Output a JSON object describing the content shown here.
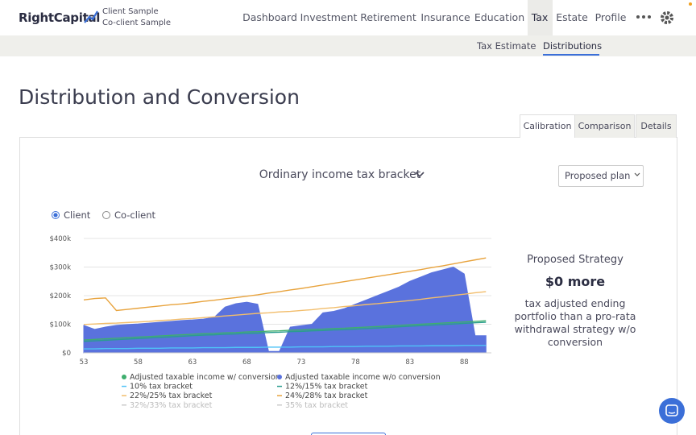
{
  "header": {
    "brand": "RightCapital",
    "client": "Client Sample",
    "coclient": "Co-client Sample",
    "nav": [
      "Dashboard",
      "Investment",
      "Retirement",
      "Insurance",
      "Education",
      "Tax",
      "Estate",
      "Profile"
    ]
  },
  "subnav": [
    "Tax Estimate",
    "Distributions"
  ],
  "page_title": "Distribution and Conversion",
  "tabs": [
    "Calibration",
    "Comparison",
    "Details"
  ],
  "chart_selector": "Ordinary income tax bracket",
  "plan_select": "Proposed plan",
  "radios": [
    "Client",
    "Co-client"
  ],
  "summary": {
    "title": "Proposed Strategy",
    "amount": "$0 more",
    "text": "tax adjusted ending portfolio than a pro-rata withdrawal strategy w/o conversion"
  },
  "chart_data": {
    "type": "line",
    "x": [
      53,
      54,
      55,
      56,
      57,
      58,
      59,
      60,
      61,
      62,
      63,
      64,
      65,
      66,
      67,
      68,
      69,
      70,
      71,
      72,
      73,
      74,
      75,
      76,
      77,
      78,
      79,
      80,
      81,
      82,
      83,
      84,
      85,
      86,
      87,
      88,
      89,
      90
    ],
    "xlim": [
      53,
      90.5
    ],
    "xticks": [
      53,
      58,
      63,
      68,
      73,
      78,
      83,
      88
    ],
    "ylim": [
      0,
      400000
    ],
    "yticks": [
      {
        "value": 0,
        "label": "$0"
      },
      {
        "value": 100000,
        "label": "$100k"
      },
      {
        "value": 200000,
        "label": "$200k"
      },
      {
        "value": 300000,
        "label": "$300k"
      },
      {
        "value": 400000,
        "label": "$400k"
      }
    ],
    "grid": true,
    "series": [
      {
        "name": "Adjusted taxable income w/ conversion",
        "color": "#3fae6e",
        "marker": "dot",
        "values": [
          45000,
          47000,
          49000,
          51000,
          53000,
          55000,
          57000,
          59000,
          61000,
          63000,
          65000,
          67000,
          68000,
          70000,
          71000,
          73000,
          74000,
          76000,
          77000,
          79000,
          80000,
          82000,
          83000,
          85000,
          86000,
          88000,
          90000,
          92000,
          94000,
          96000,
          98000,
          100000,
          102000,
          104000,
          106000,
          108000,
          110000,
          112000
        ]
      },
      {
        "name": "Adjusted taxable income w/o conversion",
        "color": "#5a72dd",
        "marker": "dot",
        "style": "area",
        "values": [
          96000,
          82000,
          90000,
          96000,
          99000,
          101000,
          104000,
          107000,
          110000,
          113000,
          115000,
          118000,
          124000,
          160000,
          172000,
          177000,
          170000,
          5000,
          5000,
          90000,
          95000,
          100000,
          140000,
          145000,
          155000,
          170000,
          185000,
          200000,
          215000,
          230000,
          250000,
          265000,
          280000,
          290000,
          300000,
          276000,
          60000,
          60000
        ]
      },
      {
        "name": "10% tax bracket",
        "color": "#4fc3f7",
        "values": [
          14000,
          14000,
          15000,
          15000,
          15000,
          16000,
          16000,
          16000,
          17000,
          17000,
          17000,
          18000,
          18000,
          18000,
          19000,
          19000,
          19000,
          20000,
          20000,
          20000,
          21000,
          21000,
          21000,
          22000,
          22000,
          22000,
          23000,
          23000,
          23000,
          24000,
          24000,
          24000,
          25000,
          25000,
          25000,
          26000,
          26000,
          26000
        ]
      },
      {
        "name": "12%/15% tax bracket",
        "color": "#2a9d8f",
        "values": [
          40000,
          42000,
          44000,
          46000,
          48000,
          50000,
          52000,
          54000,
          56000,
          58000,
          60000,
          62000,
          63000,
          65000,
          66000,
          68000,
          69000,
          71000,
          72000,
          74000,
          75000,
          77000,
          78000,
          80000,
          81000,
          83000,
          85000,
          87000,
          89000,
          91000,
          93000,
          95000,
          97000,
          99000,
          101000,
          103000,
          105000,
          107000
        ]
      },
      {
        "name": "22%/25% tax bracket",
        "color": "#f2bd6b",
        "values": [
          99000,
          101000,
          103000,
          104000,
          106000,
          108000,
          110000,
          113000,
          115000,
          118000,
          120000,
          123000,
          126000,
          129000,
          132000,
          135000,
          138000,
          140000,
          143000,
          145000,
          148000,
          151000,
          155000,
          158000,
          162000,
          165000,
          169000,
          172000,
          176000,
          179000,
          183000,
          187000,
          192000,
          196000,
          201000,
          205000,
          210000,
          214000
        ]
      },
      {
        "name": "24%/28% tax bracket",
        "color": "#e8a33d",
        "values": [
          185000,
          190000,
          192000,
          148000,
          152000,
          156000,
          160000,
          164000,
          168000,
          171000,
          175000,
          180000,
          184000,
          189000,
          193000,
          198000,
          203000,
          209000,
          214000,
          220000,
          225000,
          231000,
          237000,
          243000,
          249000,
          255000,
          261000,
          267000,
          273000,
          279000,
          285000,
          291000,
          298000,
          304000,
          311000,
          318000,
          325000,
          332000
        ]
      },
      {
        "name": "32%/33% tax bracket",
        "color": "#e57373",
        "hidden": true
      },
      {
        "name": "35% tax bracket",
        "color": "#c2185b",
        "hidden": true
      }
    ]
  }
}
